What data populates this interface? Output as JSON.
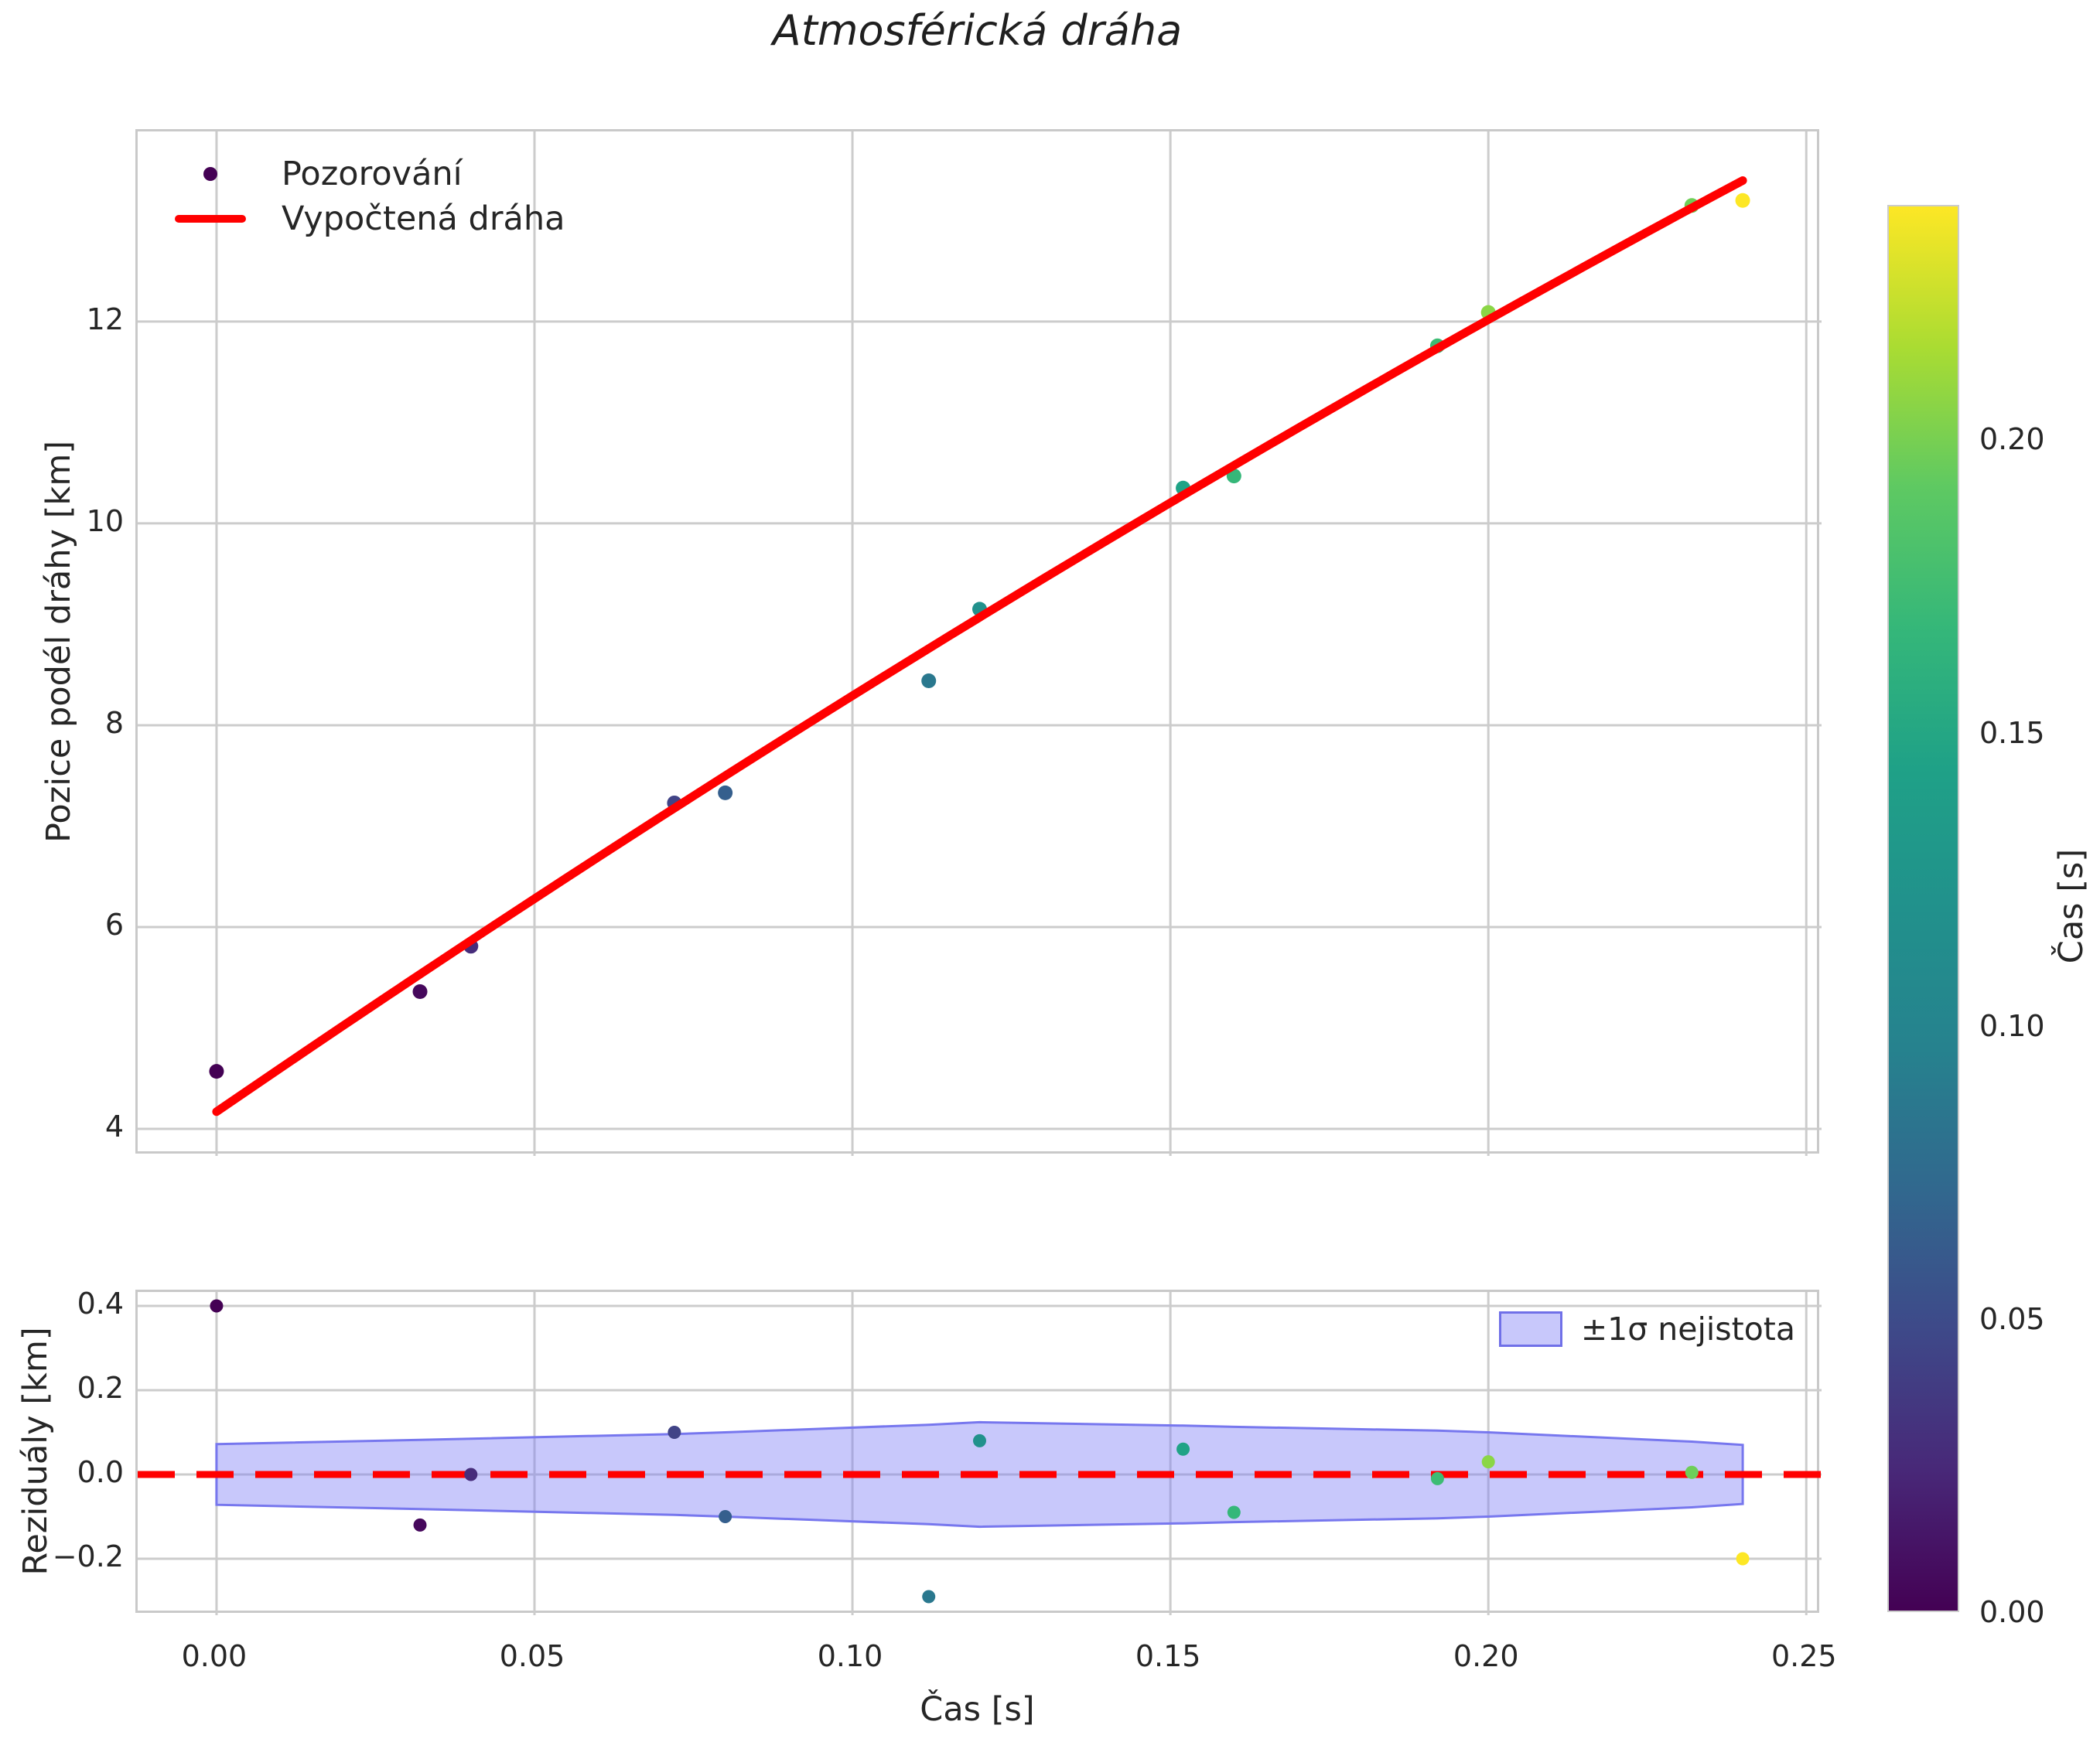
{
  "chart_data": {
    "type": "scatter",
    "title": "Atmosférická dráha",
    "xlabel": "Čas [s]",
    "xlim": [
      -0.0124,
      0.2524
    ],
    "x_ticks": [
      0.0,
      0.05,
      0.1,
      0.15,
      0.2,
      0.25
    ],
    "x_tick_labels": [
      "0.00",
      "0.05",
      "0.10",
      "0.15",
      "0.20",
      "0.25"
    ],
    "grid": true,
    "grid_color": "#cccccc",
    "spine_color": "#c9c9c9",
    "text_color": "#262626",
    "main": {
      "ylabel": "Pozice podél dráhy [km]",
      "ylim": [
        3.732,
        13.884
      ],
      "y_ticks": [
        4,
        6,
        8,
        10,
        12
      ],
      "y_tick_labels": [
        "4",
        "6",
        "8",
        "10",
        "12"
      ],
      "legend": {
        "observations_label": "Pozorování",
        "fit_label": "Vypočtená dráha",
        "position": "upper left"
      },
      "points": {
        "t_s": [
          0.0,
          0.032,
          0.04,
          0.072,
          0.08,
          0.112,
          0.12,
          0.152,
          0.16,
          0.192,
          0.2,
          0.232,
          0.24
        ],
        "s_km": [
          4.57,
          5.36,
          5.81,
          7.23,
          7.33,
          8.44,
          9.15,
          10.35,
          10.47,
          11.76,
          12.09,
          13.15,
          13.2
        ],
        "colors": [
          "#440154",
          "#46085c",
          "#472d7b",
          "#414487",
          "#355f8d",
          "#2a788e",
          "#21918c",
          "#20a386",
          "#35b779",
          "#3dbc74",
          "#8bd646",
          "#6ece58",
          "#fde725"
        ]
      },
      "fit_line": {
        "color": "#ff0000",
        "width": 11,
        "t_range": [
          0.0,
          0.24
        ],
        "quadratic_km": {
          "a": 4.17,
          "b": 43.2,
          "c": -19.8
        }
      }
    },
    "residuals": {
      "ylabel": "Reziduály [km]",
      "ylim": [
        -0.334,
        0.433
      ],
      "y_ticks": [
        -0.2,
        0.0,
        0.2,
        0.4
      ],
      "y_tick_labels": [
        "−0.2",
        "0.0",
        "0.2",
        "0.4"
      ],
      "zero_line": {
        "value": 0.0,
        "color": "#ff0000",
        "style": "dashed"
      },
      "band": {
        "label": "±1σ nejistota",
        "fill_color": "rgba(125,125,245,0.42)",
        "edge_color": "#7777ee",
        "t_s": [
          0.0,
          0.032,
          0.04,
          0.072,
          0.08,
          0.112,
          0.12,
          0.152,
          0.16,
          0.192,
          0.2,
          0.232,
          0.24
        ],
        "half_width_km": [
          0.072,
          0.082,
          0.085,
          0.096,
          0.1,
          0.118,
          0.124,
          0.116,
          0.113,
          0.104,
          0.1,
          0.078,
          0.07
        ]
      },
      "points": {
        "t_s": [
          0.0,
          0.032,
          0.04,
          0.072,
          0.08,
          0.112,
          0.12,
          0.152,
          0.16,
          0.192,
          0.2,
          0.232,
          0.24
        ],
        "r_km": [
          0.4,
          -0.12,
          0.0,
          0.1,
          -0.1,
          -0.29,
          0.08,
          0.06,
          -0.09,
          -0.01,
          0.03,
          0.005,
          -0.2
        ],
        "colors": [
          "#440154",
          "#46085c",
          "#472d7b",
          "#414487",
          "#355f8d",
          "#2a788e",
          "#21918c",
          "#20a386",
          "#35b779",
          "#3dbc74",
          "#8bd646",
          "#6ece58",
          "#fde725"
        ]
      }
    },
    "colorbar": {
      "label": "Čas [s]",
      "vmin": 0.0,
      "vmax": 0.24,
      "ticks": [
        0.0,
        0.05,
        0.1,
        0.15,
        0.2
      ],
      "tick_labels": [
        "0.00",
        "0.05",
        "0.10",
        "0.15",
        "0.20"
      ],
      "colormap": "viridis",
      "viridis_stops": [
        "#440154",
        "#482878",
        "#3e4989",
        "#31688e",
        "#26828e",
        "#21918c",
        "#1fa187",
        "#35b779",
        "#5ec962",
        "#aadc32",
        "#fde725"
      ]
    }
  }
}
